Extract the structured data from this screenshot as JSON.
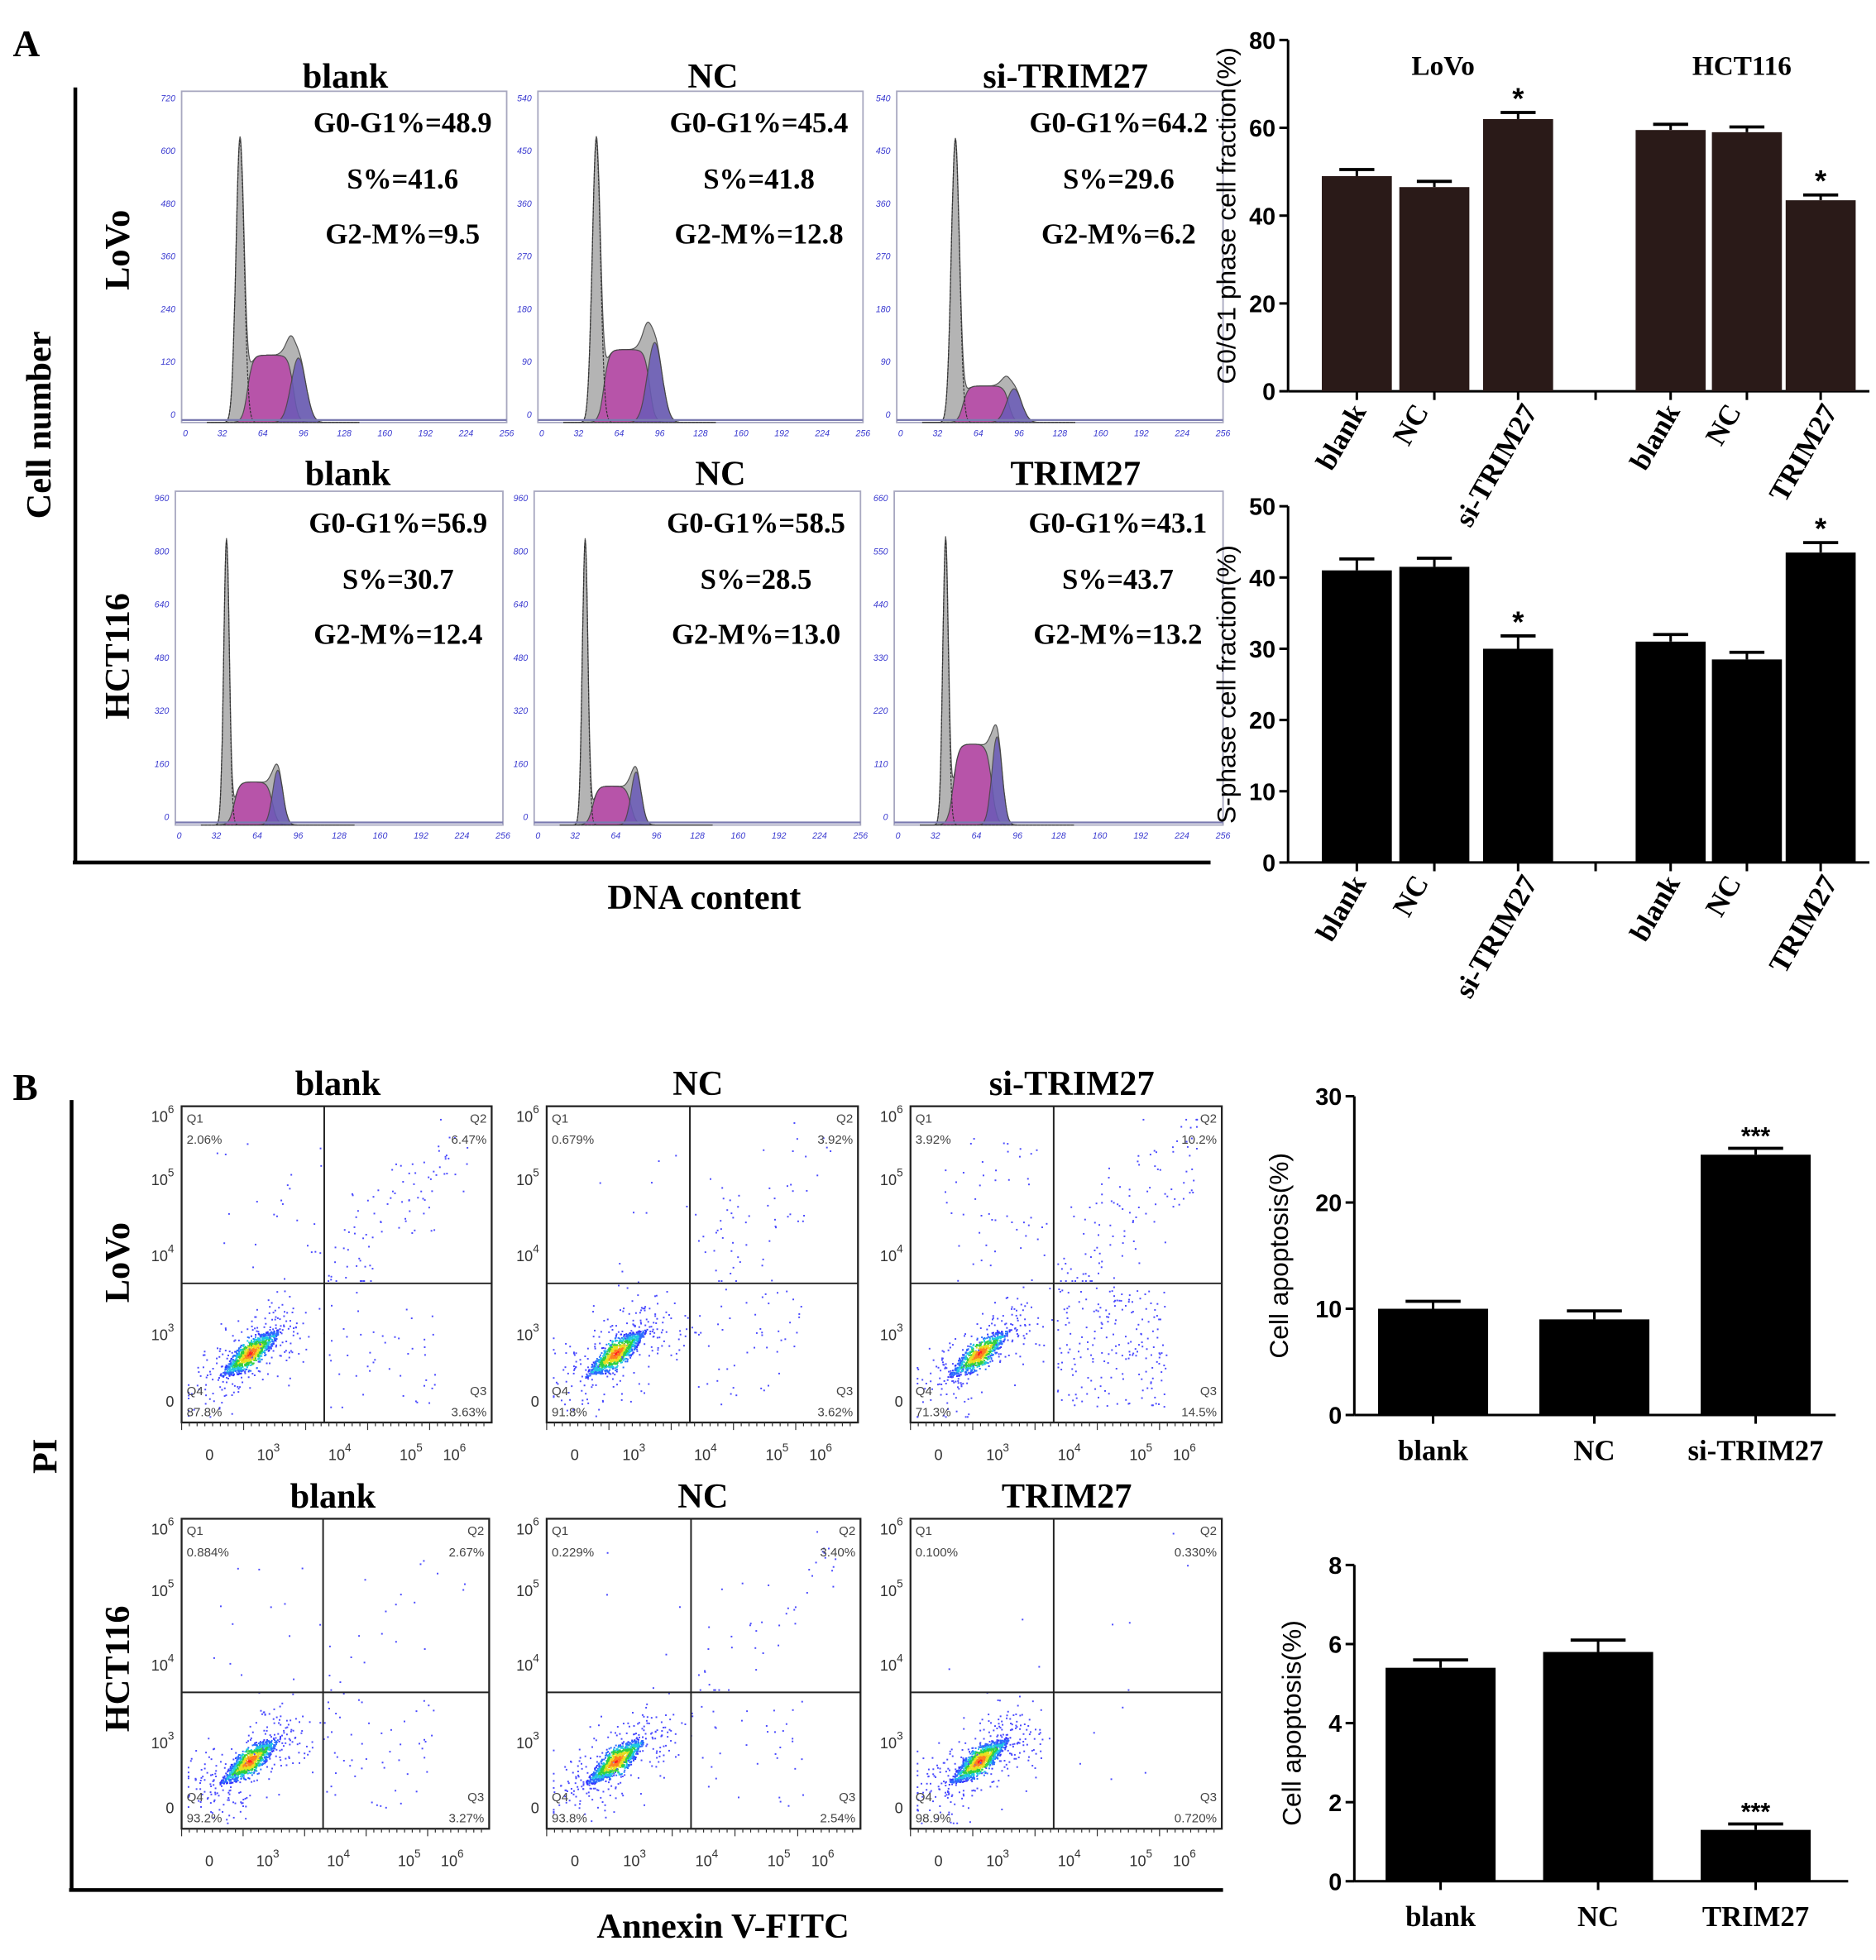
{
  "panel_a": {
    "label": "A",
    "y_axis_label": "Cell number",
    "x_axis_label": "DNA content",
    "row_labels": [
      "LoVo",
      "HCT116"
    ],
    "histograms": [
      {
        "title": "blank",
        "g0g1": "G0-G1%=48.9",
        "s": "S%=41.6",
        "g2m": "G2-M%=9.5",
        "values": {
          "G0-G1": 48.9,
          "S": 41.6,
          "G2-M": 9.5
        },
        "y_ticks": [
          0,
          120,
          240,
          360,
          480,
          600,
          720
        ]
      },
      {
        "title": "NC",
        "g0g1": "G0-G1%=45.4",
        "s": "S%=41.8",
        "g2m": "G2-M%=12.8",
        "values": {
          "G0-G1": 45.4,
          "S": 41.8,
          "G2-M": 12.8
        },
        "y_ticks": [
          0,
          90,
          180,
          270,
          360,
          450,
          540
        ]
      },
      {
        "title": "si-TRIM27",
        "g0g1": "G0-G1%=64.2",
        "s": "S%=29.6",
        "g2m": "G2-M%=6.2",
        "values": {
          "G0-G1": 64.2,
          "S": 29.6,
          "G2-M": 6.2
        },
        "y_ticks": [
          0,
          90,
          180,
          270,
          360,
          450,
          540
        ]
      },
      {
        "title": "blank",
        "g0g1": "G0-G1%=56.9",
        "s": "S%=30.7",
        "g2m": "G2-M%=12.4",
        "values": {
          "G0-G1": 56.9,
          "S": 30.7,
          "G2-M": 12.4
        },
        "y_ticks": [
          0,
          160,
          320,
          480,
          640,
          800,
          960
        ]
      },
      {
        "title": "NC",
        "g0g1": "G0-G1%=58.5",
        "s": "S%=28.5",
        "g2m": "G2-M%=13.0",
        "values": {
          "G0-G1": 58.5,
          "S": 28.5,
          "G2-M": 13.0
        },
        "y_ticks": [
          0,
          160,
          320,
          480,
          640,
          800,
          960
        ]
      },
      {
        "title": "TRIM27",
        "g0g1": "G0-G1%=43.1",
        "s": "S%=43.7",
        "g2m": "G2-M%=13.2",
        "values": {
          "G0-G1": 43.1,
          "S": 43.7,
          "G2-M": 13.2
        },
        "y_ticks": [
          0,
          110,
          220,
          330,
          440,
          550,
          660
        ]
      }
    ],
    "hist_x_ticks": [
      0,
      32,
      64,
      96,
      128,
      160,
      192,
      224,
      256
    ],
    "colors": {
      "total": "#b4b4b4",
      "s_phase": "#b84aa8",
      "g2m": "#6a5ab8",
      "tick": "#3a3ad0"
    }
  },
  "panel_b": {
    "label": "B",
    "y_axis_label": "PI",
    "x_axis_label": "Annexin V-FITC",
    "row_labels": [
      "LoVo",
      "HCT116"
    ],
    "scatter_y_ticks": [
      {
        "base": "0"
      },
      {
        "base": "10",
        "exp": "3"
      },
      {
        "base": "10",
        "exp": "4"
      },
      {
        "base": "10",
        "exp": "5"
      },
      {
        "base": "10",
        "exp": "6"
      }
    ],
    "scatter_x_ticks": [
      {
        "base": "0"
      },
      {
        "base": "10",
        "exp": "3"
      },
      {
        "base": "10",
        "exp": "4"
      },
      {
        "base": "10",
        "exp": "5"
      },
      {
        "base": "10",
        "exp": "6"
      }
    ],
    "quadrant_names": [
      "Q1",
      "Q2",
      "Q3",
      "Q4"
    ],
    "scatters": [
      {
        "title": "blank",
        "Q1": "2.06%",
        "Q2": "6.47%",
        "Q3": "3.63%",
        "Q4": "87.8%"
      },
      {
        "title": "NC",
        "Q1": "0.679%",
        "Q2": "3.92%",
        "Q3": "3.62%",
        "Q4": "91.8%"
      },
      {
        "title": "si-TRIM27",
        "Q1": "3.92%",
        "Q2": "10.2%",
        "Q3": "14.5%",
        "Q4": "71.3%"
      },
      {
        "title": "blank",
        "Q1": "0.884%",
        "Q2": "2.67%",
        "Q3": "3.27%",
        "Q4": "93.2%"
      },
      {
        "title": "NC",
        "Q1": "0.229%",
        "Q2": "3.40%",
        "Q3": "2.54%",
        "Q4": "93.8%"
      },
      {
        "title": "TRIM27",
        "Q1": "0.100%",
        "Q2": "0.330%",
        "Q3": "0.720%",
        "Q4": "98.9%"
      }
    ]
  },
  "chart_data": [
    {
      "type": "bar",
      "ylabel": "G0/G1 phase cell fraction(%)",
      "ylim": [
        0,
        80
      ],
      "y_ticks": [
        0,
        20,
        40,
        60,
        80
      ],
      "group_labels": [
        "LoVo",
        "HCT116"
      ],
      "categories": [
        "blank",
        "NC",
        "si-TRIM27",
        "blank",
        "NC",
        "TRIM27"
      ],
      "values": [
        49,
        46.5,
        62,
        59.5,
        59,
        43.5
      ],
      "errors": [
        1.5,
        1.3,
        1.5,
        1.3,
        1.2,
        1.2
      ],
      "annotations": [
        "",
        "",
        "*",
        "",
        "",
        "*"
      ],
      "color": "#2a1a18"
    },
    {
      "type": "bar",
      "ylabel": "S-phase cell fraction(%)",
      "ylim": [
        0,
        50
      ],
      "y_ticks": [
        0,
        10,
        20,
        30,
        40,
        50
      ],
      "categories": [
        "blank",
        "NC",
        "si-TRIM27",
        "blank",
        "NC",
        "TRIM27"
      ],
      "values": [
        41,
        41.5,
        30,
        31,
        28.5,
        43.5
      ],
      "errors": [
        1.6,
        1.2,
        1.8,
        1.0,
        1.0,
        1.4
      ],
      "annotations": [
        "",
        "",
        "*",
        "",
        "",
        "*"
      ],
      "color": "#000000"
    },
    {
      "type": "bar",
      "ylabel": "Cell apoptosis(%)",
      "ylim": [
        0,
        30
      ],
      "y_ticks": [
        0,
        10,
        20,
        30
      ],
      "categories": [
        "blank",
        "NC",
        "si-TRIM27"
      ],
      "values": [
        10,
        9,
        24.5
      ],
      "errors": [
        0.7,
        0.8,
        0.6
      ],
      "annotations": [
        "",
        "",
        "***"
      ],
      "color": "#000000"
    },
    {
      "type": "bar",
      "ylabel": "Cell apoptosis(%)",
      "ylim": [
        0,
        8
      ],
      "y_ticks": [
        0,
        2,
        4,
        6,
        8
      ],
      "categories": [
        "blank",
        "NC",
        "TRIM27"
      ],
      "values": [
        5.4,
        5.8,
        1.3
      ],
      "errors": [
        0.2,
        0.3,
        0.15
      ],
      "annotations": [
        "",
        "",
        "***"
      ],
      "color": "#000000"
    }
  ]
}
